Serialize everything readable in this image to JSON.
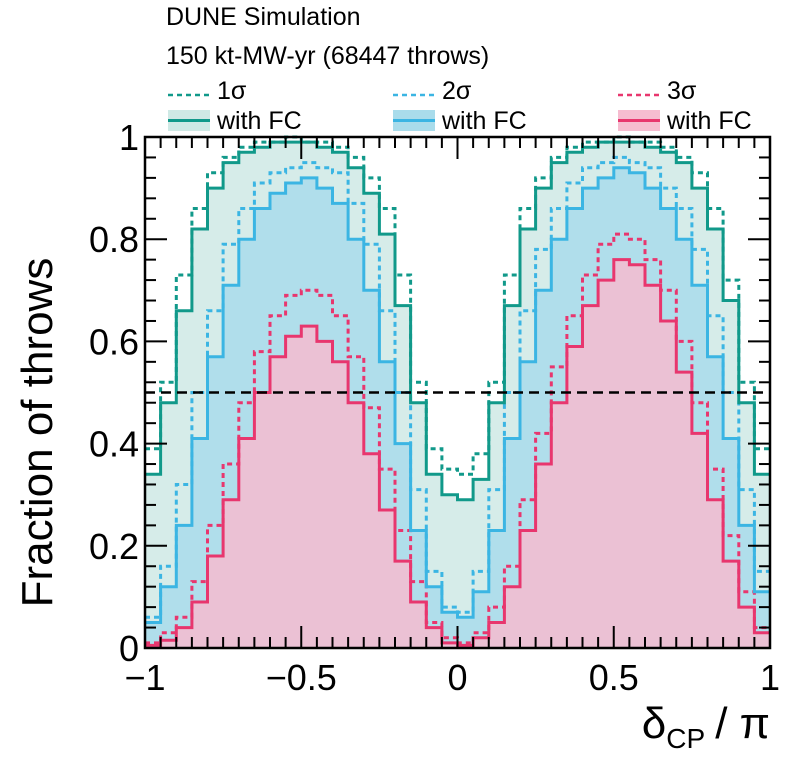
{
  "header": {
    "line1": "DUNE Simulation",
    "line2": "150 kt-MW-yr (68447 throws)"
  },
  "chart_data": {
    "type": "histogram-step",
    "title": "DUNE Simulation",
    "subtitle": "150 kt-MW-yr (68447 throws)",
    "xlabel": "δCP / π",
    "xlabel_main": "δ",
    "xlabel_sub": "CP",
    "xlabel_tail": "/ π",
    "ylabel": "Fraction of throws",
    "xlim": [
      -1,
      1
    ],
    "ylim": [
      0,
      1
    ],
    "x_ticks": [
      -1,
      -0.5,
      0,
      0.5,
      1
    ],
    "x_tick_labels": [
      "−1",
      "−0.5",
      "0",
      "0.5",
      "1"
    ],
    "y_ticks": [
      0,
      0.2,
      0.4,
      0.6,
      0.8,
      1
    ],
    "y_tick_labels": [
      "0",
      "0.2",
      "0.4",
      "0.6",
      "0.8",
      "1"
    ],
    "reference_line": {
      "y": 0.5,
      "style": "dashed",
      "color": "#000000"
    },
    "bin_edges": [
      -1.0,
      -0.95,
      -0.9,
      -0.85,
      -0.8,
      -0.75,
      -0.7,
      -0.65,
      -0.6,
      -0.55,
      -0.5,
      -0.45,
      -0.4,
      -0.35,
      -0.3,
      -0.25,
      -0.2,
      -0.15,
      -0.1,
      -0.05,
      0.0,
      0.05,
      0.1,
      0.15,
      0.2,
      0.25,
      0.3,
      0.35,
      0.4,
      0.45,
      0.5,
      0.55,
      0.6,
      0.65,
      0.7,
      0.75,
      0.8,
      0.85,
      0.9,
      0.95,
      1.0
    ],
    "legend": [
      {
        "label": "1σ",
        "style": "dashed",
        "color": "#11998a"
      },
      {
        "label": "2σ",
        "style": "dashed",
        "color": "#3bb5e3"
      },
      {
        "label": "3σ",
        "style": "dashed",
        "color": "#e8366e"
      },
      {
        "label": "with FC",
        "style": "solid",
        "color": "#11998a",
        "fill": "#cfe9e5"
      },
      {
        "label": "with FC",
        "style": "solid",
        "color": "#3bb5e3",
        "fill": "#a9dceb"
      },
      {
        "label": "with FC",
        "style": "solid",
        "color": "#e8366e",
        "fill": "#f6bcd0"
      }
    ],
    "series": [
      {
        "name": "1σ with FC",
        "style": "solid",
        "color": "#11998a",
        "fill": "#cfe9e5",
        "values": [
          0.34,
          0.48,
          0.66,
          0.82,
          0.9,
          0.95,
          0.97,
          0.98,
          0.99,
          0.99,
          0.99,
          0.98,
          0.97,
          0.94,
          0.89,
          0.81,
          0.67,
          0.48,
          0.34,
          0.3,
          0.29,
          0.33,
          0.48,
          0.67,
          0.82,
          0.9,
          0.95,
          0.97,
          0.98,
          0.99,
          0.99,
          0.99,
          0.98,
          0.97,
          0.95,
          0.9,
          0.82,
          0.68,
          0.48,
          0.34
        ]
      },
      {
        "name": "2σ with FC",
        "style": "solid",
        "color": "#3bb5e3",
        "fill": "#a9dceb",
        "values": [
          0.05,
          0.12,
          0.24,
          0.41,
          0.57,
          0.71,
          0.8,
          0.86,
          0.89,
          0.91,
          0.92,
          0.9,
          0.87,
          0.8,
          0.7,
          0.56,
          0.4,
          0.23,
          0.12,
          0.07,
          0.06,
          0.11,
          0.23,
          0.41,
          0.56,
          0.7,
          0.8,
          0.86,
          0.9,
          0.92,
          0.94,
          0.93,
          0.9,
          0.86,
          0.8,
          0.71,
          0.57,
          0.41,
          0.24,
          0.11
        ]
      },
      {
        "name": "3σ with FC",
        "style": "solid",
        "color": "#e8366e",
        "fill": "#f6bcd0",
        "values": [
          0.005,
          0.015,
          0.04,
          0.09,
          0.18,
          0.29,
          0.41,
          0.5,
          0.57,
          0.61,
          0.63,
          0.6,
          0.56,
          0.48,
          0.38,
          0.27,
          0.17,
          0.09,
          0.04,
          0.01,
          0.005,
          0.02,
          0.05,
          0.12,
          0.23,
          0.36,
          0.48,
          0.59,
          0.67,
          0.72,
          0.76,
          0.75,
          0.71,
          0.64,
          0.54,
          0.42,
          0.29,
          0.17,
          0.08,
          0.03
        ]
      },
      {
        "name": "1σ",
        "style": "dashed",
        "color": "#11998a",
        "values": [
          0.39,
          0.52,
          0.73,
          0.86,
          0.93,
          0.96,
          0.98,
          0.99,
          0.99,
          1.0,
          0.99,
          0.99,
          0.98,
          0.96,
          0.92,
          0.86,
          0.73,
          0.52,
          0.39,
          0.35,
          0.34,
          0.38,
          0.52,
          0.73,
          0.86,
          0.92,
          0.96,
          0.98,
          0.99,
          0.99,
          1.0,
          0.99,
          0.99,
          0.98,
          0.96,
          0.93,
          0.86,
          0.72,
          0.52,
          0.39
        ]
      },
      {
        "name": "2σ",
        "style": "dashed",
        "color": "#3bb5e3",
        "values": [
          0.06,
          0.16,
          0.32,
          0.5,
          0.66,
          0.79,
          0.86,
          0.91,
          0.93,
          0.94,
          0.95,
          0.94,
          0.93,
          0.87,
          0.79,
          0.66,
          0.5,
          0.31,
          0.15,
          0.08,
          0.07,
          0.15,
          0.31,
          0.5,
          0.66,
          0.78,
          0.86,
          0.91,
          0.94,
          0.95,
          0.96,
          0.95,
          0.94,
          0.9,
          0.86,
          0.78,
          0.65,
          0.5,
          0.31,
          0.15
        ]
      },
      {
        "name": "3σ",
        "style": "dashed",
        "color": "#e8366e",
        "values": [
          0.01,
          0.03,
          0.06,
          0.13,
          0.24,
          0.36,
          0.48,
          0.58,
          0.65,
          0.69,
          0.7,
          0.69,
          0.65,
          0.57,
          0.47,
          0.35,
          0.23,
          0.13,
          0.05,
          0.02,
          0.01,
          0.03,
          0.08,
          0.16,
          0.29,
          0.42,
          0.55,
          0.65,
          0.73,
          0.79,
          0.81,
          0.8,
          0.76,
          0.7,
          0.6,
          0.48,
          0.35,
          0.22,
          0.11,
          0.04
        ]
      }
    ]
  }
}
